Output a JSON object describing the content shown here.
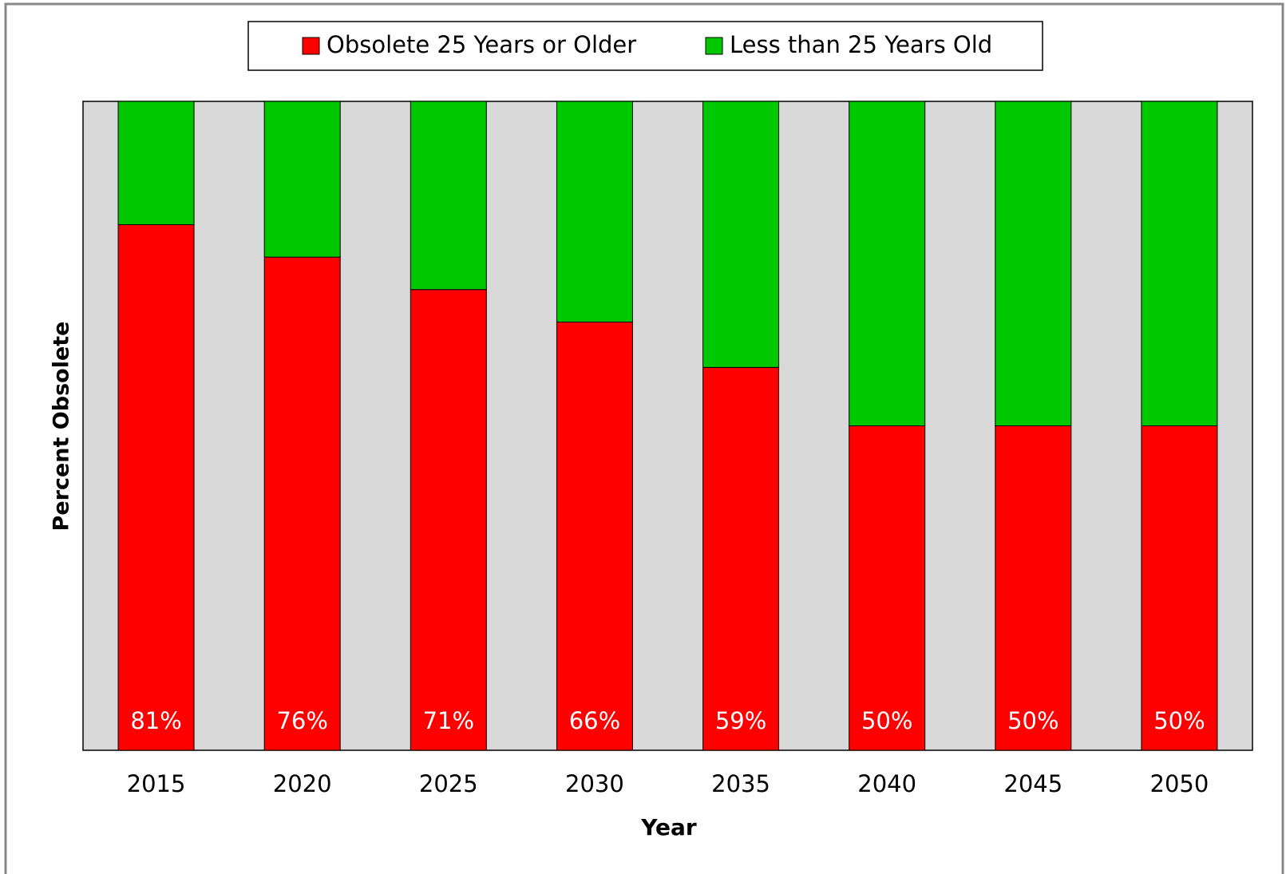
{
  "chart_data": {
    "type": "stacked_bar",
    "x_label": "Year",
    "y_label": "Percent Obsolete",
    "categories": [
      "2015",
      "2020",
      "2025",
      "2030",
      "2035",
      "2040",
      "2045",
      "2050"
    ],
    "series": [
      {
        "name": "Obsolete 25 Years or Older",
        "color": "#ff0000",
        "values": [
          81,
          76,
          71,
          66,
          59,
          50,
          50,
          50
        ],
        "value_labels": [
          "81%",
          "76%",
          "71%",
          "66%",
          "59%",
          "50%",
          "50%",
          "50%"
        ]
      },
      {
        "name": "Less than 25 Years Old",
        "color": "#00c800",
        "values": [
          19,
          24,
          29,
          34,
          41,
          50,
          50,
          50
        ]
      }
    ],
    "ylim": [
      0,
      100
    ],
    "plot_background": "#d9d9d9",
    "legend": "top"
  }
}
